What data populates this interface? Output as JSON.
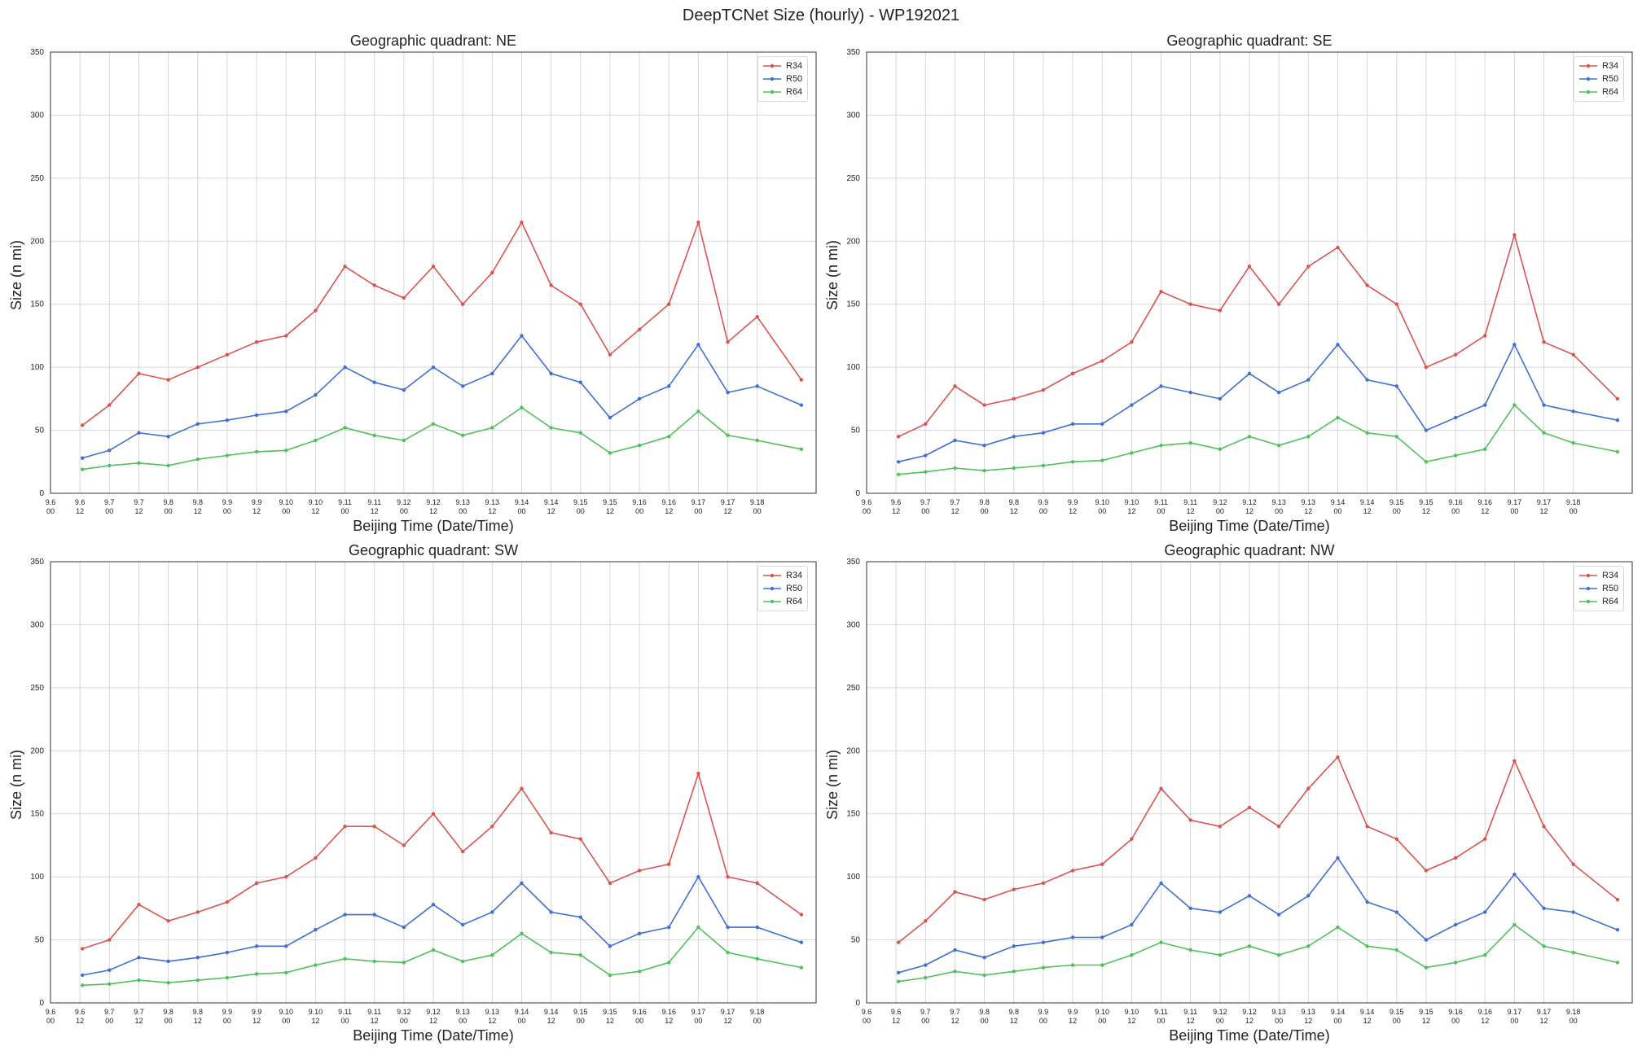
{
  "suptitle": "DeepTCNet Size (hourly) - WP192021",
  "colors": {
    "R34": "#d9534f",
    "R50": "#3f6fd1",
    "R64": "#4fc05a"
  },
  "chart_data": [
    {
      "type": "line",
      "title": "Geographic quadrant: NE",
      "xlabel": "Beijing Time (Date/Time)",
      "ylabel": "Size (n mi)",
      "ylim": [
        0,
        350
      ],
      "yticks": [
        0,
        50,
        100,
        150,
        200,
        250,
        300,
        350
      ],
      "xlim": [
        "9.6 00",
        "9.18 24"
      ],
      "xticks": [
        "9.6 00",
        "9.6 12",
        "9.7 00",
        "9.7 12",
        "9.8 00",
        "9.8 12",
        "9.9 00",
        "9.9 12",
        "9.10 00",
        "9.10 12",
        "9.11 00",
        "9.11 12",
        "9.12 00",
        "9.12 12",
        "9.13 00",
        "9.13 12",
        "9.14 00",
        "9.14 12",
        "9.15 00",
        "9.15 12",
        "9.16 00",
        "9.16 12",
        "9.17 00",
        "9.17 12",
        "9.18 00"
      ],
      "grid": true,
      "legend_position": "top-right",
      "x": [
        "9.6 13",
        "9.7 00",
        "9.7 12",
        "9.8 00",
        "9.8 12",
        "9.9 00",
        "9.9 12",
        "9.10 00",
        "9.10 12",
        "9.11 00",
        "9.11 12",
        "9.12 00",
        "9.12 12",
        "9.13 00",
        "9.13 12",
        "9.14 00",
        "9.14 12",
        "9.15 00",
        "9.15 12",
        "9.16 00",
        "9.16 12",
        "9.17 00",
        "9.17 12",
        "9.18 00",
        "9.18 18"
      ],
      "series": [
        {
          "name": "R34",
          "values": [
            54,
            70,
            95,
            90,
            100,
            110,
            120,
            125,
            145,
            180,
            165,
            155,
            180,
            150,
            175,
            215,
            165,
            150,
            110,
            130,
            150,
            215,
            120,
            140,
            90
          ]
        },
        {
          "name": "R50",
          "values": [
            28,
            34,
            48,
            45,
            55,
            58,
            62,
            65,
            78,
            100,
            88,
            82,
            100,
            85,
            95,
            125,
            95,
            88,
            60,
            75,
            85,
            118,
            80,
            85,
            70
          ]
        },
        {
          "name": "R64",
          "values": [
            19,
            22,
            24,
            22,
            27,
            30,
            33,
            34,
            42,
            52,
            46,
            42,
            55,
            46,
            52,
            68,
            52,
            48,
            32,
            38,
            45,
            65,
            46,
            42,
            35
          ]
        }
      ]
    },
    {
      "type": "line",
      "title": "Geographic quadrant: SE",
      "xlabel": "Beijing Time (Date/Time)",
      "ylabel": "Size (n mi)",
      "ylim": [
        0,
        350
      ],
      "yticks": [
        0,
        50,
        100,
        150,
        200,
        250,
        300,
        350
      ],
      "xlim": [
        "9.6 00",
        "9.18 24"
      ],
      "xticks": [
        "9.6 00",
        "9.6 12",
        "9.7 00",
        "9.7 12",
        "9.8 00",
        "9.8 12",
        "9.9 00",
        "9.9 12",
        "9.10 00",
        "9.10 12",
        "9.11 00",
        "9.11 12",
        "9.12 00",
        "9.12 12",
        "9.13 00",
        "9.13 12",
        "9.14 00",
        "9.14 12",
        "9.15 00",
        "9.15 12",
        "9.16 00",
        "9.16 12",
        "9.17 00",
        "9.17 12",
        "9.18 00"
      ],
      "grid": true,
      "legend_position": "top-right",
      "x": [
        "9.6 13",
        "9.7 00",
        "9.7 12",
        "9.8 00",
        "9.8 12",
        "9.9 00",
        "9.9 12",
        "9.10 00",
        "9.10 12",
        "9.11 00",
        "9.11 12",
        "9.12 00",
        "9.12 12",
        "9.13 00",
        "9.13 12",
        "9.14 00",
        "9.14 12",
        "9.15 00",
        "9.15 12",
        "9.16 00",
        "9.16 12",
        "9.17 00",
        "9.17 12",
        "9.18 00",
        "9.18 18"
      ],
      "series": [
        {
          "name": "R34",
          "values": [
            45,
            55,
            85,
            70,
            75,
            82,
            95,
            105,
            120,
            160,
            150,
            145,
            180,
            150,
            180,
            195,
            165,
            150,
            100,
            110,
            125,
            205,
            120,
            110,
            75
          ]
        },
        {
          "name": "R50",
          "values": [
            25,
            30,
            42,
            38,
            45,
            48,
            55,
            55,
            70,
            85,
            80,
            75,
            95,
            80,
            90,
            118,
            90,
            85,
            50,
            60,
            70,
            118,
            70,
            65,
            58
          ]
        },
        {
          "name": "R64",
          "values": [
            15,
            17,
            20,
            18,
            20,
            22,
            25,
            26,
            32,
            38,
            40,
            35,
            45,
            38,
            45,
            60,
            48,
            45,
            25,
            30,
            35,
            70,
            48,
            40,
            33
          ]
        }
      ]
    },
    {
      "type": "line",
      "title": "Geographic quadrant: SW",
      "xlabel": "Beijing Time (Date/Time)",
      "ylabel": "Size (n mi)",
      "ylim": [
        0,
        350
      ],
      "yticks": [
        0,
        50,
        100,
        150,
        200,
        250,
        300,
        350
      ],
      "xlim": [
        "9.6 00",
        "9.18 24"
      ],
      "xticks": [
        "9.6 00",
        "9.6 12",
        "9.7 00",
        "9.7 12",
        "9.8 00",
        "9.8 12",
        "9.9 00",
        "9.9 12",
        "9.10 00",
        "9.10 12",
        "9.11 00",
        "9.11 12",
        "9.12 00",
        "9.12 12",
        "9.13 00",
        "9.13 12",
        "9.14 00",
        "9.14 12",
        "9.15 00",
        "9.15 12",
        "9.16 00",
        "9.16 12",
        "9.17 00",
        "9.17 12",
        "9.18 00"
      ],
      "grid": true,
      "legend_position": "top-right",
      "x": [
        "9.6 13",
        "9.7 00",
        "9.7 12",
        "9.8 00",
        "9.8 12",
        "9.9 00",
        "9.9 12",
        "9.10 00",
        "9.10 12",
        "9.11 00",
        "9.11 12",
        "9.12 00",
        "9.12 12",
        "9.13 00",
        "9.13 12",
        "9.14 00",
        "9.14 12",
        "9.15 00",
        "9.15 12",
        "9.16 00",
        "9.16 12",
        "9.17 00",
        "9.17 12",
        "9.18 00",
        "9.18 18"
      ],
      "series": [
        {
          "name": "R34",
          "values": [
            43,
            50,
            78,
            65,
            72,
            80,
            95,
            100,
            115,
            140,
            140,
            125,
            150,
            120,
            140,
            170,
            135,
            130,
            95,
            105,
            110,
            182,
            100,
            95,
            70
          ]
        },
        {
          "name": "R50",
          "values": [
            22,
            26,
            36,
            33,
            36,
            40,
            45,
            45,
            58,
            70,
            70,
            60,
            78,
            62,
            72,
            95,
            72,
            68,
            45,
            55,
            60,
            100,
            60,
            60,
            48
          ]
        },
        {
          "name": "R64",
          "values": [
            14,
            15,
            18,
            16,
            18,
            20,
            23,
            24,
            30,
            35,
            33,
            32,
            42,
            33,
            38,
            55,
            40,
            38,
            22,
            25,
            32,
            60,
            40,
            35,
            28
          ]
        }
      ]
    },
    {
      "type": "line",
      "title": "Geographic quadrant: NW",
      "xlabel": "Beijing Time (Date/Time)",
      "ylabel": "Size (n mi)",
      "ylim": [
        0,
        350
      ],
      "yticks": [
        0,
        50,
        100,
        150,
        200,
        250,
        300,
        350
      ],
      "xlim": [
        "9.6 00",
        "9.18 24"
      ],
      "xticks": [
        "9.6 00",
        "9.6 12",
        "9.7 00",
        "9.7 12",
        "9.8 00",
        "9.8 12",
        "9.9 00",
        "9.9 12",
        "9.10 00",
        "9.10 12",
        "9.11 00",
        "9.11 12",
        "9.12 00",
        "9.12 12",
        "9.13 00",
        "9.13 12",
        "9.14 00",
        "9.14 12",
        "9.15 00",
        "9.15 12",
        "9.16 00",
        "9.16 12",
        "9.17 00",
        "9.17 12",
        "9.18 00"
      ],
      "grid": true,
      "legend_position": "top-right",
      "x": [
        "9.6 13",
        "9.7 00",
        "9.7 12",
        "9.8 00",
        "9.8 12",
        "9.9 00",
        "9.9 12",
        "9.10 00",
        "9.10 12",
        "9.11 00",
        "9.11 12",
        "9.12 00",
        "9.12 12",
        "9.13 00",
        "9.13 12",
        "9.14 00",
        "9.14 12",
        "9.15 00",
        "9.15 12",
        "9.16 00",
        "9.16 12",
        "9.17 00",
        "9.17 12",
        "9.18 00",
        "9.18 18"
      ],
      "series": [
        {
          "name": "R34",
          "values": [
            48,
            65,
            88,
            82,
            90,
            95,
            105,
            110,
            130,
            170,
            145,
            140,
            155,
            140,
            170,
            195,
            140,
            130,
            105,
            115,
            130,
            192,
            140,
            110,
            82
          ]
        },
        {
          "name": "R50",
          "values": [
            24,
            30,
            42,
            36,
            45,
            48,
            52,
            52,
            62,
            95,
            75,
            72,
            85,
            70,
            85,
            115,
            80,
            72,
            50,
            62,
            72,
            102,
            75,
            72,
            58
          ]
        },
        {
          "name": "R64",
          "values": [
            17,
            20,
            25,
            22,
            25,
            28,
            30,
            30,
            38,
            48,
            42,
            38,
            45,
            38,
            45,
            60,
            45,
            42,
            28,
            32,
            38,
            62,
            45,
            40,
            32
          ]
        }
      ]
    }
  ]
}
